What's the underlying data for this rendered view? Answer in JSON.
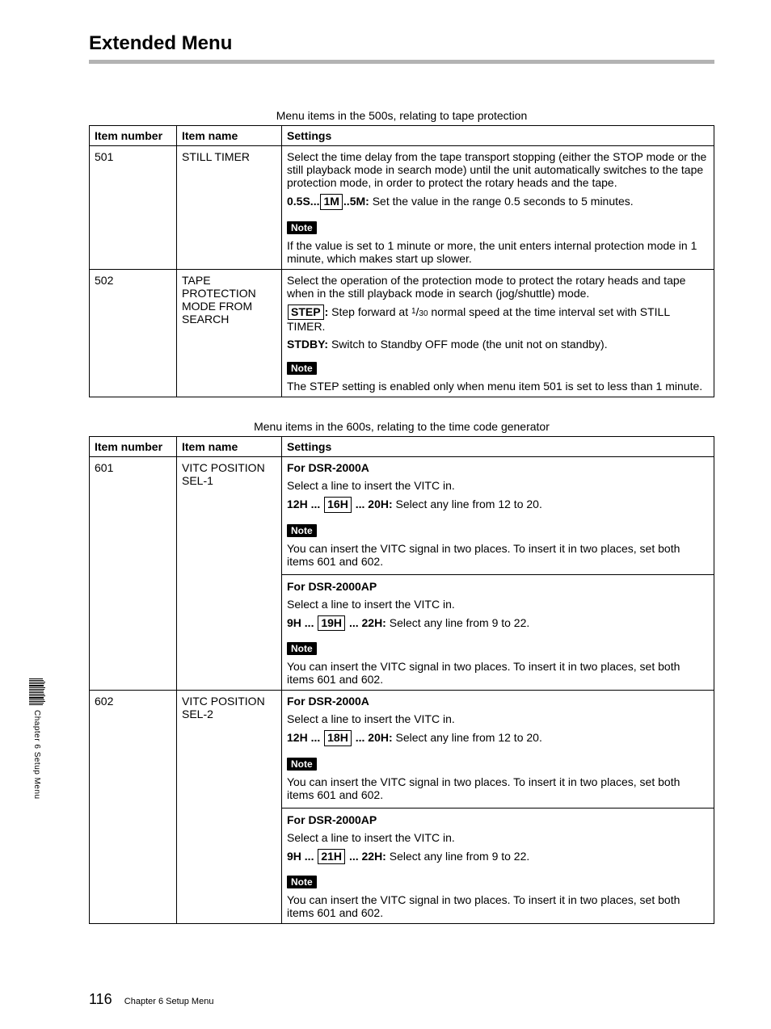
{
  "page": {
    "title": "Extended Menu",
    "footer_page_number": "116",
    "footer_text": "Chapter 6    Setup Menu",
    "side_label": "Chapter 6    Setup Menu"
  },
  "colors": {
    "header_rule": "#b3b3b3",
    "note_bg": "#000000",
    "note_fg": "#ffffff",
    "border": "#000000",
    "text": "#000000",
    "background": "#ffffff"
  },
  "typography": {
    "base_fontsize": 14,
    "heading_fontsize": 24,
    "caption_fontsize": 14,
    "footer_fontsize": 11,
    "pageno_fontsize": 18,
    "side_fontsize": 10
  },
  "tables": {
    "t500": {
      "caption": "Menu items in the 500s, relating to tape protection",
      "columns": [
        "Item number",
        "Item name",
        "Settings"
      ],
      "rows": [
        {
          "number": "501",
          "name": "STILL TIMER",
          "settings": {
            "intro": "Select the time delay from the tape transport stopping (either the STOP mode or the still playback mode in search mode) until the unit automatically switches to the tape protection mode, in order to protect the rotary heads and the tape.",
            "range_prefix": "0.5S...",
            "range_boxed": "1M",
            "range_mid": "..5M:",
            "range_rest": " Set the value in the range 0.5 seconds to 5 minutes.",
            "note_label": "Note",
            "note_text": "If the value is set to 1 minute or more, the unit enters internal protection mode in 1 minute, which makes start up slower."
          }
        },
        {
          "number": "502",
          "name": "TAPE PROTECTION MODE FROM SEARCH",
          "settings": {
            "intro": "Select the operation of the protection mode to protect the rotary heads and tape when in the still playback mode in search (jog/shuttle) mode.",
            "step_boxed": "STEP",
            "step_colon": ":",
            "step_pre": " Step forward at ",
            "step_frac_num": "1",
            "step_frac_slash": "/",
            "step_frac_den": "30",
            "step_post": " normal speed at the time interval set with STILL TIMER.",
            "stdby_label": "STDBY:",
            "stdby_text": " Switch to  Standby OFF mode  (the unit not on standby).",
            "note_label": "Note",
            "note_text": "The STEP setting is enabled only when menu item 501 is set to less than 1 minute."
          }
        }
      ]
    },
    "t600": {
      "caption": "Menu items in the 600s, relating to the time code generator",
      "columns": [
        "Item number",
        "Item name",
        "Settings"
      ],
      "rows": [
        {
          "number": "601",
          "name": "VITC POSITION SEL-1",
          "settings": {
            "sections": [
              {
                "model_heading": "For DSR-2000A",
                "select_line": "Select a line to insert the VITC in.",
                "range_a": "12H ...",
                "range_boxed": "16H",
                "range_b": "... 20H:",
                "range_rest": " Select any line from 12 to 20.",
                "note_label": "Note",
                "note_text": "You can insert the VITC signal in two places. To insert it in two places, set both items 601 and 602."
              },
              {
                "model_heading": "For DSR-2000AP",
                "select_line": "Select a line to insert the VITC in.",
                "range_a": "9H ...",
                "range_boxed": "19H",
                "range_b": "... 22H:",
                "range_rest": " Select any line from 9 to 22.",
                "note_label": "Note",
                "note_text": "You can insert the VITC signal in two places. To insert it in two places, set both items 601 and 602."
              }
            ]
          }
        },
        {
          "number": "602",
          "name": "VITC POSITION SEL-2",
          "settings": {
            "sections": [
              {
                "model_heading": "For DSR-2000A",
                "select_line": "Select a line to insert the VITC in.",
                "range_a": "12H ...",
                "range_boxed": "18H",
                "range_b": "... 20H:",
                "range_rest": " Select any line from 12 to 20.",
                "note_label": "Note",
                "note_text": "You can insert the VITC signal in two places. To insert it in two places, set both items 601 and 602."
              },
              {
                "model_heading": "For DSR-2000AP",
                "select_line": "Select a line to insert the VITC in.",
                "range_a": "9H ...",
                "range_boxed": "21H",
                "range_b": "... 22H:",
                "range_rest": " Select any line from 9 to 22.",
                "note_label": "Note",
                "note_text": "You can insert the VITC signal in two places. To insert it in two places, set both items 601 and 602."
              }
            ]
          }
        }
      ]
    }
  }
}
